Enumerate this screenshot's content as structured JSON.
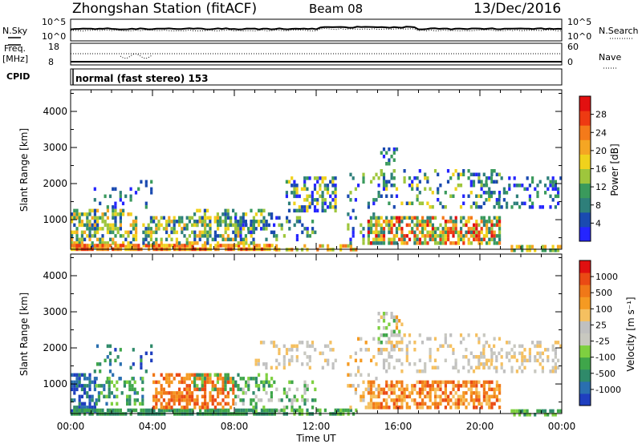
{
  "header": {
    "station": "Zhongshan Station (fitACF)",
    "beam": "Beam 08",
    "date": "13/Dec/2016"
  },
  "top_panel": {
    "nsky_label": "N.Sky",
    "nsky_ticks": [
      "10^5",
      "10^0"
    ],
    "nsearch_label": "N.Search",
    "nsearch_ticks": [
      "10^5",
      "10^0"
    ],
    "freq_label": "Freq.",
    "freq_unit": "[MHz]",
    "freq_ticks": [
      "18",
      "8"
    ],
    "nave_label": "Nave",
    "nave_ticks": [
      "60",
      "0"
    ],
    "cpid_label": "CPID",
    "cpid_text": "normal (fast stereo) 153"
  },
  "chart_data": [
    {
      "type": "heatmap",
      "name": "power",
      "ylabel": "Slant Range [km]",
      "ylim": [
        180,
        4600
      ],
      "yticks": [
        1000,
        2000,
        3000,
        4000
      ],
      "xlim": [
        0,
        24
      ],
      "xticks": [
        "00:00",
        "04:00",
        "08:00",
        "12:00",
        "16:00",
        "20:00",
        "00:00"
      ],
      "colorbar": {
        "label": "Power [dB]",
        "ticks": [
          "4",
          "8",
          "12",
          "16",
          "20",
          "24",
          "28"
        ],
        "colors": [
          "#2525ff",
          "#1a4ab0",
          "#2e7f7a",
          "#3a9a5c",
          "#9ec63c",
          "#f0d21c",
          "#f5a623",
          "#f47a1a",
          "#ee3a12",
          "#e21010"
        ]
      }
    },
    {
      "type": "heatmap",
      "name": "velocity",
      "ylabel": "Slant Range [km]",
      "ylim": [
        180,
        4600
      ],
      "yticks": [
        1000,
        2000,
        3000,
        4000
      ],
      "xlim": [
        0,
        24
      ],
      "xticks": [
        "00:00",
        "04:00",
        "08:00",
        "12:00",
        "16:00",
        "20:00",
        "00:00"
      ],
      "xlabel": "Time UT",
      "colorbar": {
        "label": "Velocity [m s⁻¹]",
        "ticks": [
          "1000",
          "500",
          "100",
          "25",
          "-25",
          "-100",
          "-500",
          "-1000"
        ],
        "colors": [
          "#1f3fbf",
          "#2a6fb0",
          "#2f8a6a",
          "#3fa64a",
          "#7ed040",
          "#c8c8c0",
          "#c0c0c0",
          "#f5c060",
          "#f59a22",
          "#f07818",
          "#ea4a14",
          "#e01010"
        ]
      }
    }
  ]
}
